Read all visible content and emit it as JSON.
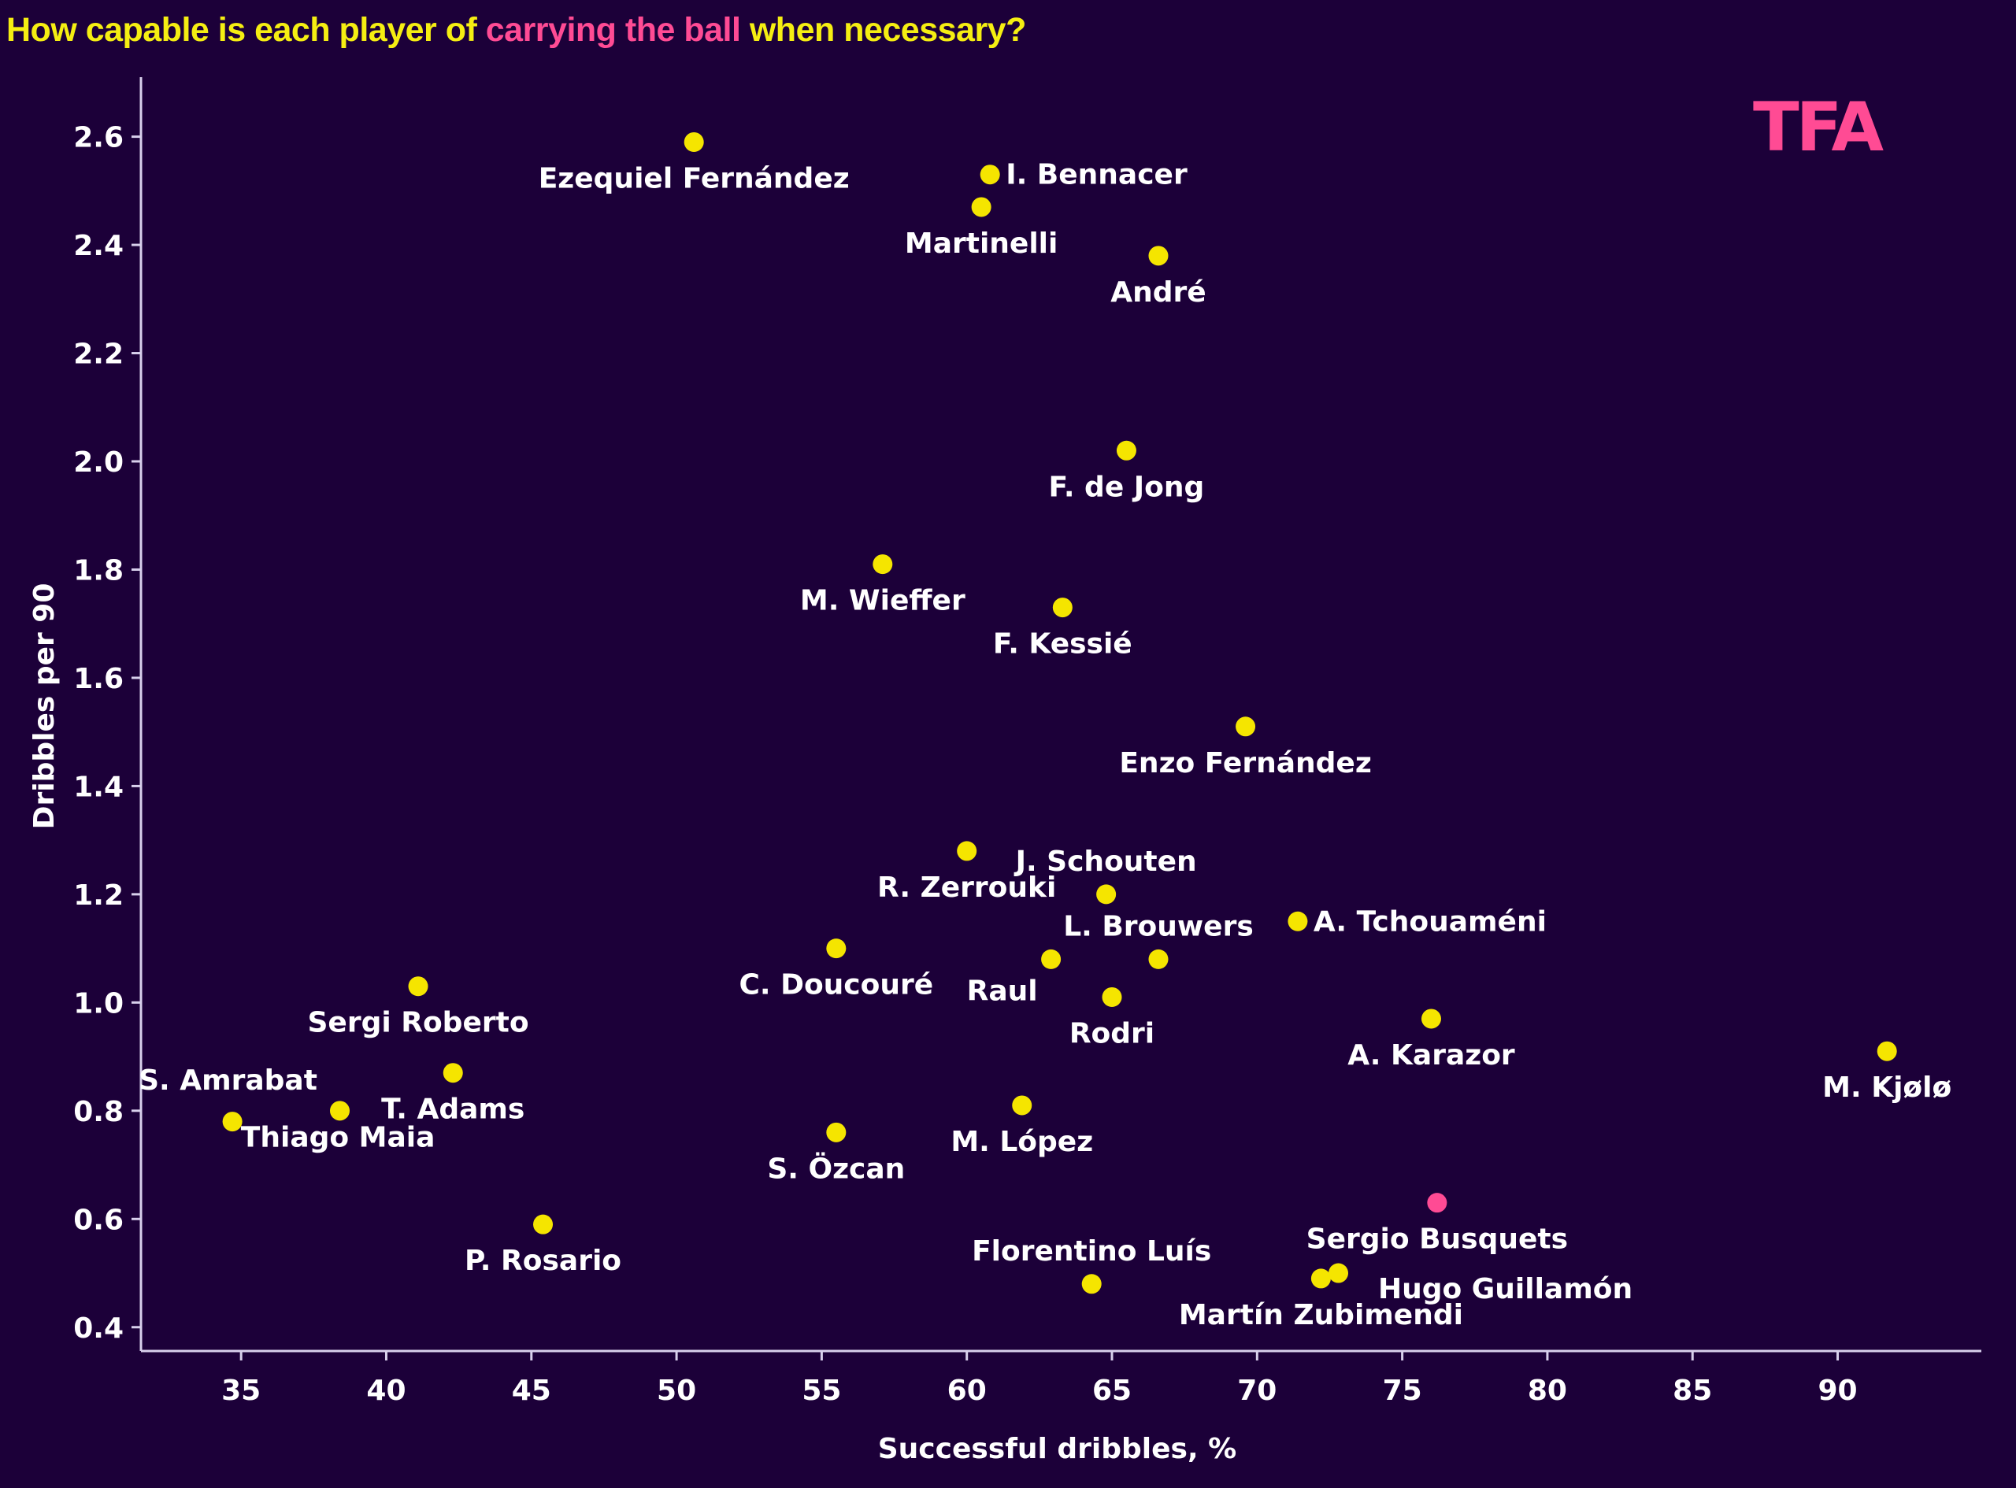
{
  "title": {
    "prefix": "How capable is each player of ",
    "highlight": "carrying the ball",
    "suffix": " when necessary?"
  },
  "logo": {
    "text": "TFA"
  },
  "colors": {
    "background": "#1c0039",
    "title": "#f5ee12",
    "highlight": "#ff4b94",
    "point": "#f5e500",
    "highlight_point": "#ff4b94",
    "axis": "#d8d0ec",
    "text": "#ffffff"
  },
  "chart_data": {
    "type": "scatter",
    "title": "How capable is each player of carrying the ball when necessary?",
    "xlabel": "Successful dribbles, %",
    "ylabel": "Dribbles per 90",
    "xlim": [
      31.55,
      94.95
    ],
    "ylim": [
      0.356,
      2.71
    ],
    "xticks": [
      35,
      40,
      45,
      50,
      55,
      60,
      65,
      70,
      75,
      80,
      85,
      90
    ],
    "yticks": [
      "0.4",
      "0.6",
      "0.8",
      "1.0",
      "1.2",
      "1.4",
      "1.6",
      "1.8",
      "2.0",
      "2.2",
      "2.4",
      "2.6"
    ],
    "grid": false,
    "legend": "none",
    "points": [
      {
        "name": "Ezequiel Fernández",
        "x": 50.6,
        "y": 2.59,
        "label_pos": "below"
      },
      {
        "name": "I. Bennacer",
        "x": 60.8,
        "y": 2.53,
        "label_pos": "right"
      },
      {
        "name": "Martinelli",
        "x": 60.5,
        "y": 2.47,
        "label_pos": "below"
      },
      {
        "name": "André",
        "x": 66.6,
        "y": 2.38,
        "label_pos": "below"
      },
      {
        "name": "F. de Jong",
        "x": 65.5,
        "y": 2.02,
        "label_pos": "below"
      },
      {
        "name": "M. Wieffer",
        "x": 57.1,
        "y": 1.81,
        "label_pos": "below"
      },
      {
        "name": "F. Kessié",
        "x": 63.3,
        "y": 1.73,
        "label_pos": "below"
      },
      {
        "name": "Enzo Fernández",
        "x": 69.6,
        "y": 1.51,
        "label_pos": "below"
      },
      {
        "name": "R. Zerrouki",
        "x": 60.0,
        "y": 1.28,
        "label_pos": "below"
      },
      {
        "name": "J. Schouten",
        "x": 64.8,
        "y": 1.2,
        "label_pos": "above"
      },
      {
        "name": "A. Tchouaméni",
        "x": 71.4,
        "y": 1.15,
        "label_pos": "right"
      },
      {
        "name": "C. Doucouré",
        "x": 55.5,
        "y": 1.1,
        "label_pos": "below"
      },
      {
        "name": "Raul",
        "x": 62.9,
        "y": 1.08,
        "label_pos": "below-left"
      },
      {
        "name": "L. Brouwers",
        "x": 66.6,
        "y": 1.08,
        "label_pos": "above"
      },
      {
        "name": "Sergi Roberto",
        "x": 41.1,
        "y": 1.03,
        "label_pos": "below"
      },
      {
        "name": "Rodri",
        "x": 65.0,
        "y": 1.01,
        "label_pos": "below"
      },
      {
        "name": "A. Karazor",
        "x": 76.0,
        "y": 0.97,
        "label_pos": "below"
      },
      {
        "name": "M. Kjølø",
        "x": 91.7,
        "y": 0.91,
        "label_pos": "below"
      },
      {
        "name": "T. Adams",
        "x": 42.3,
        "y": 0.87,
        "label_pos": "below"
      },
      {
        "name": "M. López",
        "x": 61.9,
        "y": 0.81,
        "label_pos": "below"
      },
      {
        "name": "S. Amrabat",
        "x": 38.4,
        "y": 0.8,
        "label_pos": "above-left"
      },
      {
        "name": "Thiago Maia",
        "x": 34.7,
        "y": 0.78,
        "label_pos": "below-right"
      },
      {
        "name": "S. Özcan",
        "x": 55.5,
        "y": 0.76,
        "label_pos": "below"
      },
      {
        "name": "Sergio Busquets",
        "x": 76.2,
        "y": 0.63,
        "label_pos": "below",
        "highlight": true
      },
      {
        "name": "P. Rosario",
        "x": 45.4,
        "y": 0.59,
        "label_pos": "below"
      },
      {
        "name": "Hugo Guillamón",
        "x": 72.8,
        "y": 0.5,
        "label_pos": "below-right"
      },
      {
        "name": "Martín Zubimendi",
        "x": 72.2,
        "y": 0.49,
        "label_pos": "below"
      },
      {
        "name": "Florentino Luís",
        "x": 64.3,
        "y": 0.48,
        "label_pos": "above"
      }
    ]
  }
}
